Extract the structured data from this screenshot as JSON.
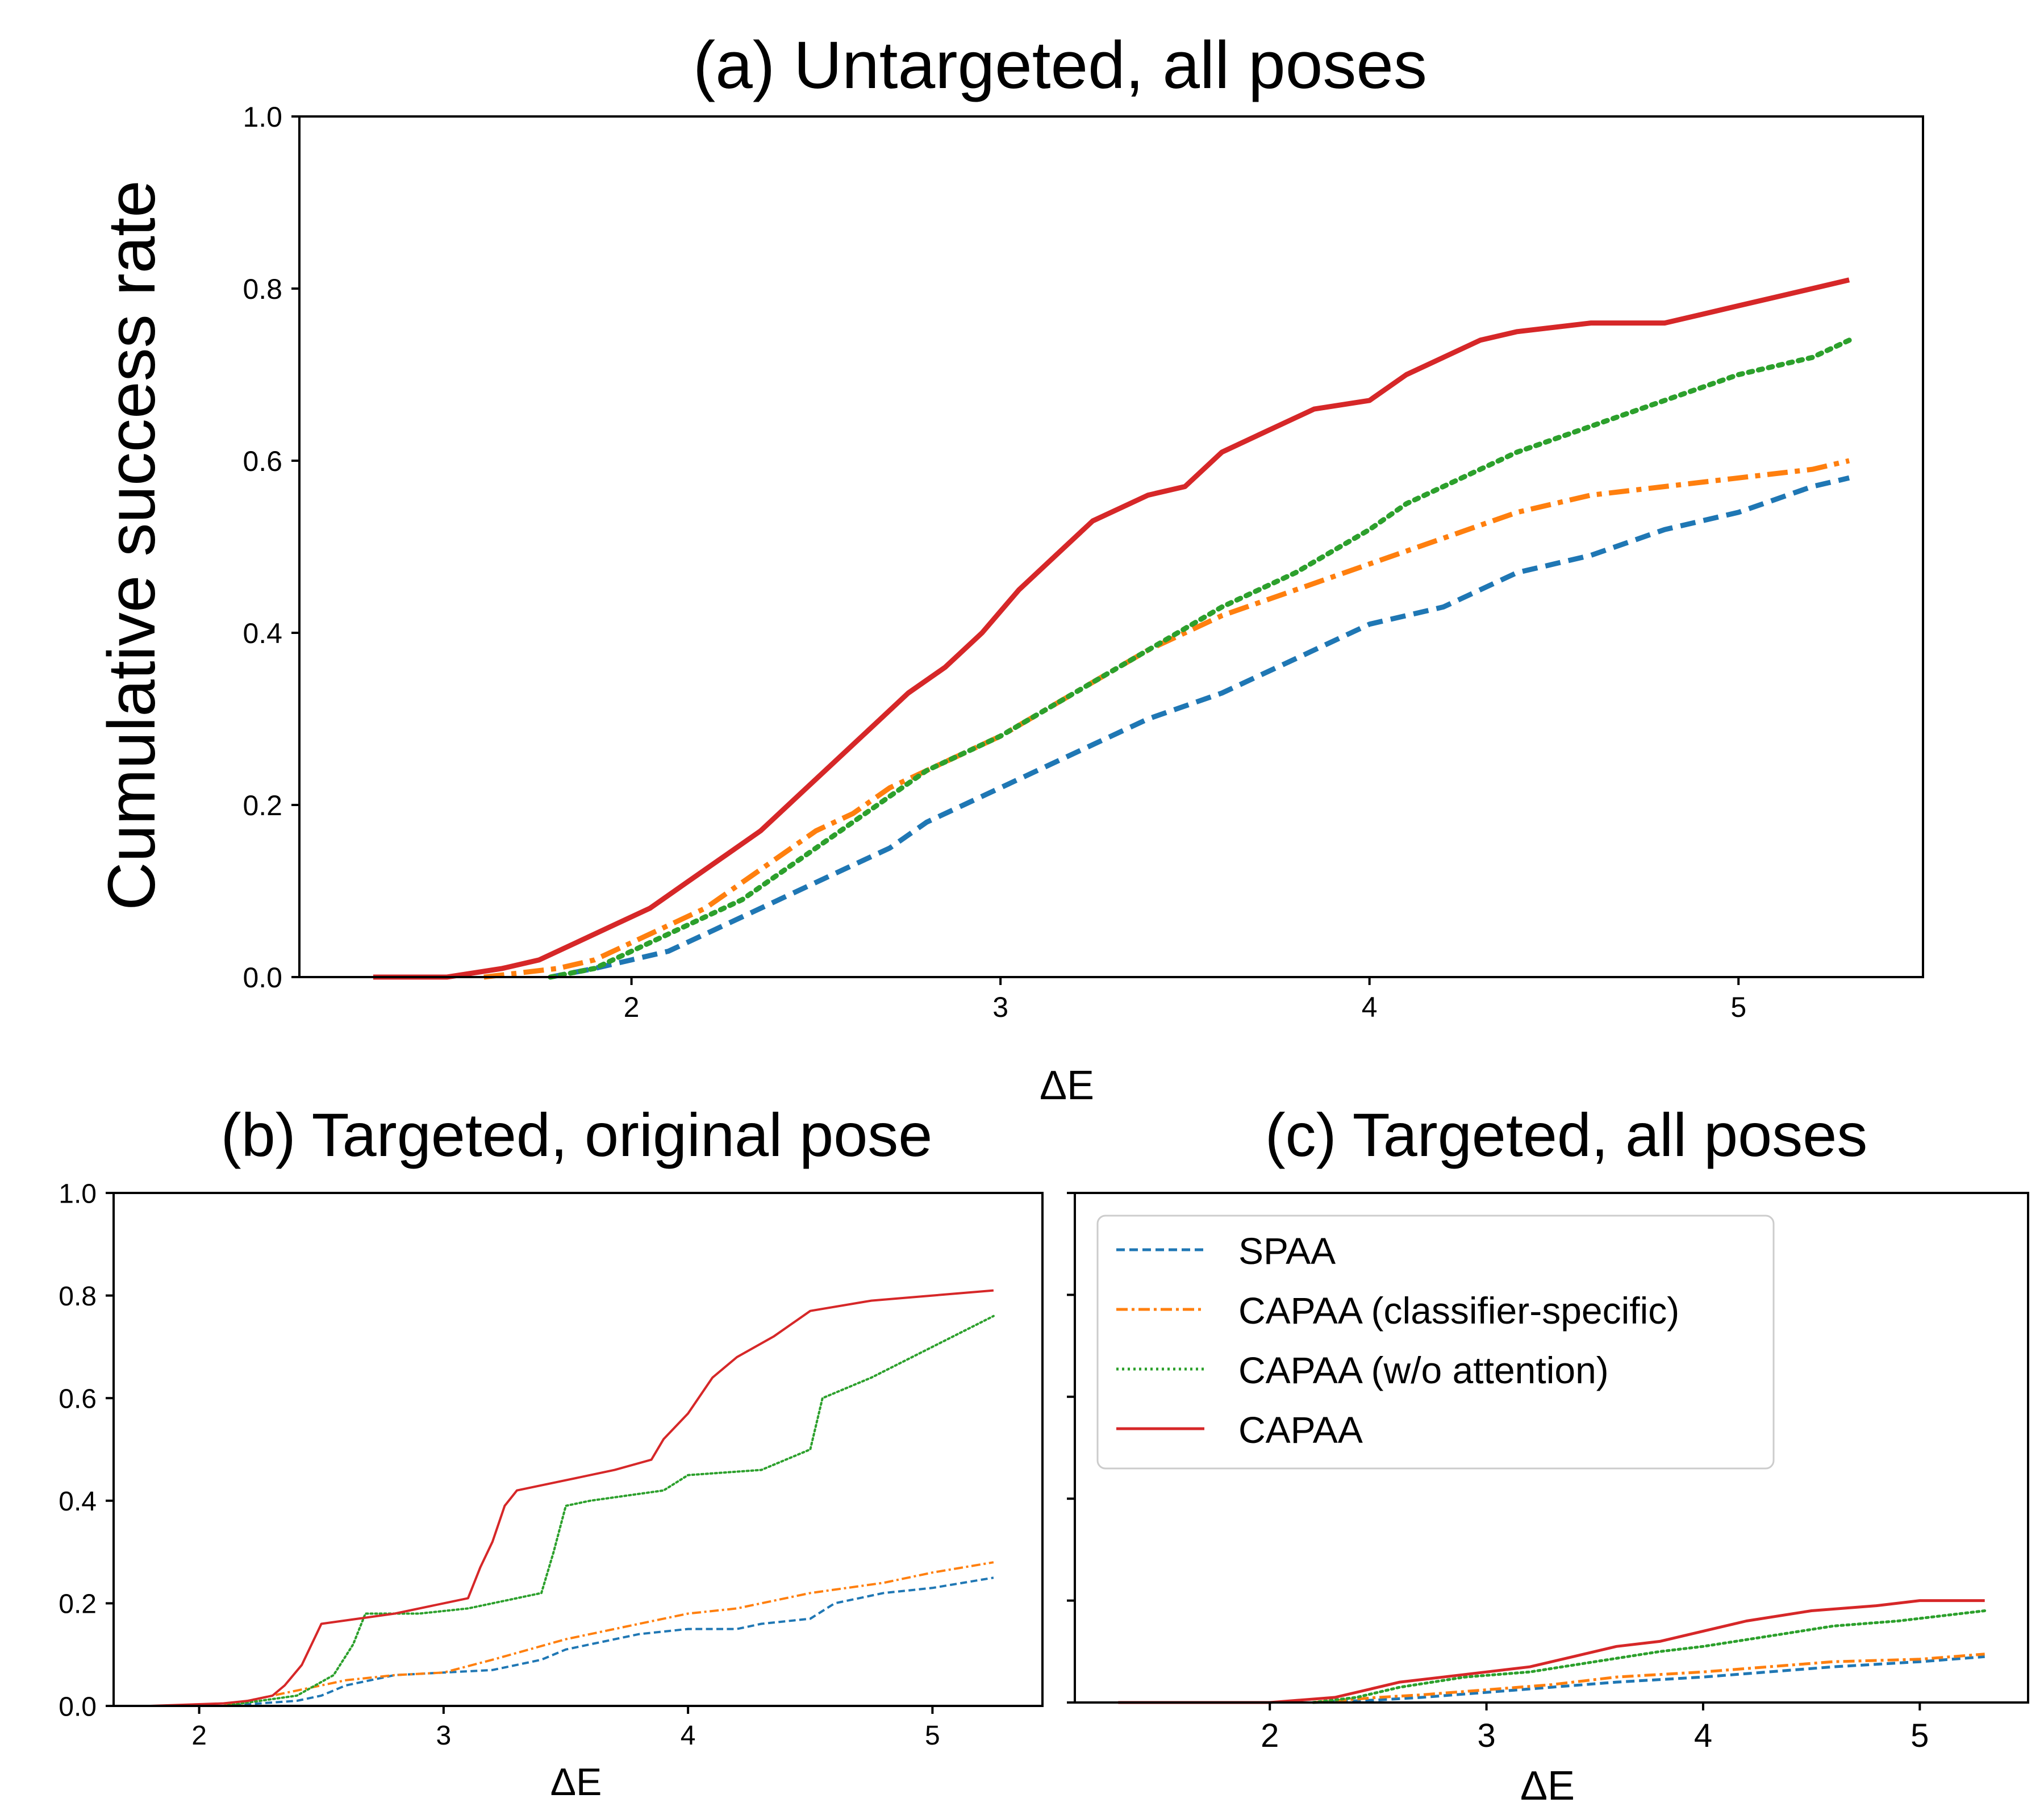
{
  "colors": {
    "spaa": "#1f77b4",
    "capaa_cs": "#ff7f0e",
    "capaa_woa": "#2ca02c",
    "capaa": "#d62728",
    "axis": "#000000"
  },
  "ylabel_shared": "Cumulative success rate",
  "legend": {
    "placement": "upper-left of panel (c)",
    "items": [
      {
        "label": "SPAA",
        "style": "dashed",
        "color_key": "spaa"
      },
      {
        "label": "CAPAA (classifier-specific)",
        "style": "dashdot",
        "color_key": "capaa_cs"
      },
      {
        "label": "CAPAA (w/o attention)",
        "style": "dotted",
        "color_key": "capaa_woa"
      },
      {
        "label": "CAPAA",
        "style": "solid",
        "color_key": "capaa"
      }
    ]
  },
  "chart_data": [
    {
      "type": "line",
      "title": "(a) Untargeted, all poses",
      "xlabel": "ΔE",
      "ylabel": "Cumulative success rate",
      "xlim": [
        1.1,
        5.5
      ],
      "ylim": [
        0.0,
        1.0
      ],
      "xticks": [
        "2",
        "3",
        "4",
        "5"
      ],
      "yticks": [
        "0.0",
        "0.2",
        "0.4",
        "0.6",
        "0.8",
        "1.0"
      ],
      "grid": false,
      "series": [
        {
          "name": "SPAA",
          "style": "dashed",
          "color_key": "spaa",
          "x": [
            1.78,
            1.9,
            2.0,
            2.1,
            2.2,
            2.3,
            2.4,
            2.5,
            2.6,
            2.7,
            2.8,
            2.9,
            3.0,
            3.2,
            3.4,
            3.6,
            3.8,
            4.0,
            4.2,
            4.4,
            4.6,
            4.8,
            5.0,
            5.2,
            5.3
          ],
          "values": [
            0.0,
            0.01,
            0.02,
            0.03,
            0.05,
            0.07,
            0.09,
            0.11,
            0.13,
            0.15,
            0.18,
            0.2,
            0.22,
            0.26,
            0.3,
            0.33,
            0.37,
            0.41,
            0.43,
            0.47,
            0.49,
            0.52,
            0.54,
            0.57,
            0.58
          ]
        },
        {
          "name": "CAPAA (classifier-specific)",
          "style": "dashdot",
          "color_key": "capaa_cs",
          "x": [
            1.6,
            1.7,
            1.8,
            1.9,
            2.0,
            2.1,
            2.2,
            2.3,
            2.4,
            2.5,
            2.6,
            2.7,
            2.8,
            3.0,
            3.2,
            3.4,
            3.6,
            3.8,
            4.0,
            4.2,
            4.4,
            4.6,
            4.8,
            5.0,
            5.2,
            5.3
          ],
          "values": [
            0.0,
            0.005,
            0.01,
            0.02,
            0.04,
            0.06,
            0.08,
            0.11,
            0.14,
            0.17,
            0.19,
            0.22,
            0.24,
            0.28,
            0.33,
            0.38,
            0.42,
            0.45,
            0.48,
            0.51,
            0.54,
            0.56,
            0.57,
            0.58,
            0.59,
            0.6
          ]
        },
        {
          "name": "CAPAA (w/o attention)",
          "style": "dotted",
          "color_key": "capaa_woa",
          "x": [
            1.78,
            1.9,
            2.0,
            2.1,
            2.2,
            2.3,
            2.4,
            2.5,
            2.6,
            2.7,
            2.8,
            3.0,
            3.2,
            3.4,
            3.6,
            3.8,
            4.0,
            4.1,
            4.2,
            4.4,
            4.6,
            4.8,
            5.0,
            5.2,
            5.3
          ],
          "values": [
            0.0,
            0.01,
            0.03,
            0.05,
            0.07,
            0.09,
            0.12,
            0.15,
            0.18,
            0.21,
            0.24,
            0.28,
            0.33,
            0.38,
            0.43,
            0.47,
            0.52,
            0.55,
            0.57,
            0.61,
            0.64,
            0.67,
            0.7,
            0.72,
            0.74
          ]
        },
        {
          "name": "CAPAA",
          "style": "solid",
          "color_key": "capaa",
          "x": [
            1.3,
            1.5,
            1.65,
            1.75,
            1.85,
            1.95,
            2.05,
            2.15,
            2.25,
            2.35,
            2.45,
            2.55,
            2.65,
            2.75,
            2.85,
            2.95,
            3.05,
            3.15,
            3.25,
            3.4,
            3.5,
            3.6,
            3.7,
            3.85,
            4.0,
            4.1,
            4.2,
            4.3,
            4.4,
            4.6,
            4.8,
            4.9,
            5.0,
            5.1,
            5.2,
            5.3
          ],
          "values": [
            0.0,
            0.0,
            0.01,
            0.02,
            0.04,
            0.06,
            0.08,
            0.11,
            0.14,
            0.17,
            0.21,
            0.25,
            0.29,
            0.33,
            0.36,
            0.4,
            0.45,
            0.49,
            0.53,
            0.56,
            0.57,
            0.61,
            0.63,
            0.66,
            0.67,
            0.7,
            0.72,
            0.74,
            0.75,
            0.76,
            0.76,
            0.77,
            0.78,
            0.79,
            0.8,
            0.81
          ]
        }
      ]
    },
    {
      "type": "line",
      "title": "(b) Targeted, original pose",
      "xlabel": "ΔE",
      "ylabel": "",
      "xlim": [
        1.65,
        5.45
      ],
      "ylim": [
        0.0,
        1.0
      ],
      "xticks": [
        "2",
        "3",
        "4",
        "5"
      ],
      "yticks": [
        "0.0",
        "0.2",
        "0.4",
        "0.6",
        "0.8",
        "1.0"
      ],
      "grid": false,
      "series": [
        {
          "name": "SPAA",
          "style": "dashed",
          "color_key": "spaa",
          "x": [
            2.1,
            2.4,
            2.5,
            2.6,
            2.8,
            3.0,
            3.2,
            3.4,
            3.5,
            3.6,
            3.8,
            4.0,
            4.2,
            4.3,
            4.5,
            4.6,
            4.8,
            5.0,
            5.25
          ],
          "values": [
            0.0,
            0.01,
            0.02,
            0.04,
            0.06,
            0.065,
            0.07,
            0.09,
            0.11,
            0.12,
            0.14,
            0.15,
            0.15,
            0.16,
            0.17,
            0.2,
            0.22,
            0.23,
            0.25
          ]
        },
        {
          "name": "CAPAA (classifier-specific)",
          "style": "dashdot",
          "color_key": "capaa_cs",
          "x": [
            2.1,
            2.3,
            2.4,
            2.5,
            2.6,
            2.8,
            3.0,
            3.2,
            3.5,
            3.8,
            4.0,
            4.2,
            4.5,
            4.8,
            5.0,
            5.25
          ],
          "values": [
            0.0,
            0.02,
            0.03,
            0.04,
            0.05,
            0.06,
            0.065,
            0.09,
            0.13,
            0.16,
            0.18,
            0.19,
            0.22,
            0.24,
            0.26,
            0.28
          ]
        },
        {
          "name": "CAPAA (w/o attention)",
          "style": "dotted",
          "color_key": "capaa_woa",
          "x": [
            2.1,
            2.4,
            2.55,
            2.63,
            2.68,
            2.75,
            2.9,
            3.1,
            3.2,
            3.4,
            3.45,
            3.5,
            3.6,
            3.9,
            4.0,
            4.3,
            4.5,
            4.55,
            4.7,
            4.75,
            5.0,
            5.25
          ],
          "values": [
            0.0,
            0.02,
            0.06,
            0.12,
            0.18,
            0.18,
            0.18,
            0.19,
            0.2,
            0.22,
            0.3,
            0.39,
            0.4,
            0.42,
            0.45,
            0.46,
            0.5,
            0.6,
            0.63,
            0.64,
            0.7,
            0.76
          ]
        },
        {
          "name": "CAPAA",
          "style": "solid",
          "color_key": "capaa",
          "x": [
            1.8,
            2.1,
            2.2,
            2.3,
            2.35,
            2.42,
            2.48,
            2.5,
            2.8,
            3.0,
            3.1,
            3.15,
            3.2,
            3.25,
            3.3,
            3.5,
            3.7,
            3.85,
            3.9,
            4.0,
            4.1,
            4.2,
            4.35,
            4.5,
            4.75,
            5.0,
            5.25
          ],
          "values": [
            0.0,
            0.005,
            0.01,
            0.02,
            0.04,
            0.08,
            0.14,
            0.16,
            0.18,
            0.2,
            0.21,
            0.27,
            0.32,
            0.39,
            0.42,
            0.44,
            0.46,
            0.48,
            0.52,
            0.57,
            0.64,
            0.68,
            0.72,
            0.77,
            0.79,
            0.8,
            0.81
          ]
        }
      ]
    },
    {
      "type": "line",
      "title": "(c) Targeted, all poses",
      "xlabel": "ΔE",
      "ylabel": "",
      "xlim": [
        1.1,
        5.5
      ],
      "ylim": [
        0.0,
        1.0
      ],
      "xticks": [
        "2",
        "3",
        "4",
        "5"
      ],
      "yticks": [],
      "grid": false,
      "series": [
        {
          "name": "SPAA",
          "style": "dashed",
          "color_key": "spaa",
          "x": [
            2.2,
            2.5,
            2.7,
            3.0,
            3.3,
            3.6,
            4.0,
            4.3,
            4.6,
            5.0,
            5.3
          ],
          "values": [
            0.0,
            0.005,
            0.01,
            0.02,
            0.03,
            0.04,
            0.05,
            0.06,
            0.07,
            0.08,
            0.09
          ]
        },
        {
          "name": "CAPAA (classifier-specific)",
          "style": "dashdot",
          "color_key": "capaa_cs",
          "x": [
            2.2,
            2.5,
            2.7,
            3.0,
            3.3,
            3.6,
            4.0,
            4.3,
            4.6,
            5.0,
            5.3
          ],
          "values": [
            0.0,
            0.01,
            0.015,
            0.025,
            0.035,
            0.05,
            0.06,
            0.07,
            0.08,
            0.085,
            0.095
          ]
        },
        {
          "name": "CAPAA (w/o attention)",
          "style": "dotted",
          "color_key": "capaa_woa",
          "x": [
            2.2,
            2.4,
            2.6,
            2.9,
            3.2,
            3.5,
            3.8,
            4.0,
            4.3,
            4.6,
            4.9,
            5.1,
            5.3
          ],
          "values": [
            0.0,
            0.01,
            0.03,
            0.05,
            0.06,
            0.08,
            0.1,
            0.11,
            0.13,
            0.15,
            0.16,
            0.17,
            0.18
          ]
        },
        {
          "name": "CAPAA",
          "style": "solid",
          "color_key": "capaa",
          "x": [
            1.3,
            2.0,
            2.3,
            2.5,
            2.6,
            2.8,
            3.0,
            3.2,
            3.4,
            3.6,
            3.8,
            4.0,
            4.2,
            4.5,
            4.8,
            5.0,
            5.3
          ],
          "values": [
            0.0,
            0.0,
            0.01,
            0.03,
            0.04,
            0.05,
            0.06,
            0.07,
            0.09,
            0.11,
            0.12,
            0.14,
            0.16,
            0.18,
            0.19,
            0.2,
            0.2
          ]
        }
      ]
    }
  ]
}
